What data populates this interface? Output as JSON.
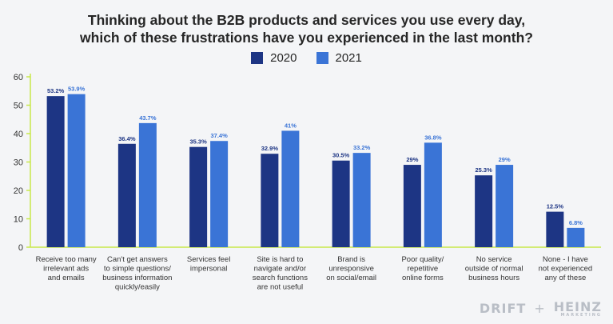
{
  "chart_data": {
    "type": "bar",
    "title_lines": [
      "Thinking about the B2B products and services you use every day,",
      "which of these frustrations have you experienced in the last month?"
    ],
    "categories": [
      [
        "Receive too many",
        "irrelevant ads",
        "and emails"
      ],
      [
        "Can't get answers",
        "to simple questions/",
        "business information",
        "quickly/easily"
      ],
      [
        "Services feel",
        "impersonal"
      ],
      [
        "Site is hard to",
        "navigate and/or",
        "search functions",
        "are not useful"
      ],
      [
        "Brand is",
        "unresponsive",
        "on social/email"
      ],
      [
        "Poor quality/",
        "repetitive",
        "online forms"
      ],
      [
        "No service",
        "outside of normal",
        "business hours"
      ],
      [
        "None - I have",
        "not experienced",
        "any of these"
      ]
    ],
    "series": [
      {
        "name": "2020",
        "color": "#1d3584",
        "values": [
          53.2,
          36.4,
          35.3,
          32.9,
          30.5,
          29,
          25.3,
          12.5
        ],
        "labels": [
          "53.2%",
          "36.4%",
          "35.3%",
          "32.9%",
          "30.5%",
          "29%",
          "25.3%",
          "12.5%"
        ]
      },
      {
        "name": "2021",
        "color": "#3a74d6",
        "values": [
          53.9,
          43.7,
          37.4,
          41,
          33.2,
          36.8,
          29,
          6.8
        ],
        "labels": [
          "53.9%",
          "43.7%",
          "37.4%",
          "41%",
          "33.2%",
          "36.8%",
          "29%",
          "6.8%"
        ]
      }
    ],
    "y_ticks": [
      "0",
      "10",
      "20",
      "30",
      "40",
      "50",
      "60"
    ],
    "ylim": [
      0,
      60
    ],
    "axis_color": "#c8e84a",
    "grid": false,
    "legend_position": "top-center"
  },
  "branding": {
    "logo_left": "DRIFT",
    "plus": "+",
    "logo_right": "HEINZ",
    "logo_right_sub": "MARKETING"
  }
}
